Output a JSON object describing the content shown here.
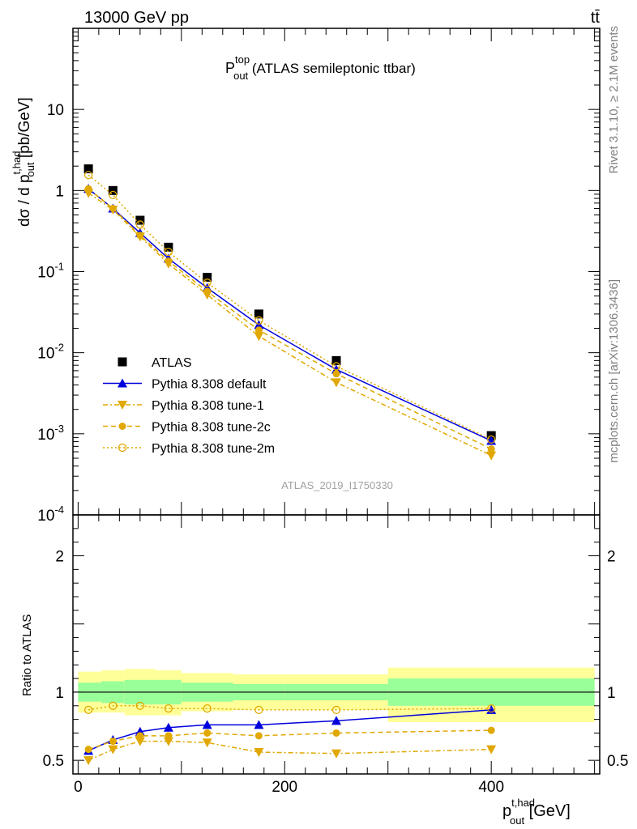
{
  "header": {
    "left": "13000 GeV pp",
    "right": "tt̄"
  },
  "side": {
    "rivet": "Rivet 3.1.10, ≥ 2.1M events",
    "mcplots": "mcplots.cern.ch [arXiv:1306.3436]"
  },
  "watermark": "ATLAS_2019_I1750330",
  "colors": {
    "data": "#000000",
    "default": "#0000dd",
    "tune": "#e0a800",
    "band_inner": "#99ff99",
    "band_outer": "#ffff99"
  },
  "chart_data": [
    {
      "type": "scatter",
      "panel": "main",
      "title": {
        "main": "P",
        "sup": "top",
        "sub": "out",
        "rest": " (ATLAS semileptonic ttbar)"
      },
      "ylabel": "dσ / d p_out^t,had [pb/GeV]",
      "yscale": "log",
      "ylim": [
        0.0001,
        100
      ],
      "xlim": [
        -5,
        505
      ],
      "ytick_labels": [
        "10",
        "1",
        "10^-1",
        "10^-2",
        "10^-3",
        "10^-4"
      ],
      "legend_position": "middle-left",
      "x": [
        10,
        33.75,
        60,
        87.5,
        125,
        175,
        250,
        400
      ],
      "series": [
        {
          "name": "ATLAS",
          "style": "data",
          "values": [
            1.85,
            1.0,
            0.43,
            0.2,
            0.085,
            0.03,
            0.008,
            0.00095
          ]
        },
        {
          "name": "Pythia 8.308 default",
          "style": "default",
          "values": [
            1.05,
            0.6,
            0.3,
            0.145,
            0.063,
            0.022,
            0.0062,
            0.00082
          ]
        },
        {
          "name": "Pythia 8.308 tune-1",
          "style": "tune1",
          "values": [
            0.93,
            0.58,
            0.27,
            0.125,
            0.052,
            0.016,
            0.0043,
            0.00054
          ]
        },
        {
          "name": "Pythia 8.308 tune-2c",
          "style": "tune2c",
          "values": [
            1.05,
            0.6,
            0.28,
            0.135,
            0.057,
            0.019,
            0.0055,
            0.00065
          ]
        },
        {
          "name": "Pythia 8.308 tune-2m",
          "style": "tune2m",
          "values": [
            1.55,
            0.88,
            0.38,
            0.175,
            0.073,
            0.025,
            0.0068,
            0.00085
          ]
        }
      ]
    },
    {
      "type": "line",
      "panel": "ratio",
      "ylabel": "Ratio to ATLAS",
      "xlabel": "p_out^t,had [GeV]",
      "ylim": [
        0.4,
        2.3
      ],
      "xlim": [
        -5,
        505
      ],
      "xtick_labels": [
        "0",
        "200",
        "400"
      ],
      "ytick_labels": [
        "0.5",
        "1",
        "2"
      ],
      "bands": [
        {
          "x0": 0,
          "x1": 22.5,
          "inner": [
            0.93,
            1.07
          ],
          "outer": [
            0.85,
            1.15
          ]
        },
        {
          "x0": 22.5,
          "x1": 45,
          "inner": [
            0.92,
            1.08
          ],
          "outer": [
            0.85,
            1.16
          ]
        },
        {
          "x0": 45,
          "x1": 75,
          "inner": [
            0.91,
            1.09
          ],
          "outer": [
            0.83,
            1.17
          ]
        },
        {
          "x0": 75,
          "x1": 100,
          "inner": [
            0.91,
            1.09
          ],
          "outer": [
            0.83,
            1.16
          ]
        },
        {
          "x0": 100,
          "x1": 150,
          "inner": [
            0.93,
            1.07
          ],
          "outer": [
            0.86,
            1.14
          ]
        },
        {
          "x0": 150,
          "x1": 200,
          "inner": [
            0.94,
            1.06
          ],
          "outer": [
            0.87,
            1.13
          ]
        },
        {
          "x0": 200,
          "x1": 300,
          "inner": [
            0.94,
            1.06
          ],
          "outer": [
            0.87,
            1.13
          ]
        },
        {
          "x0": 300,
          "x1": 500,
          "inner": [
            0.9,
            1.1
          ],
          "outer": [
            0.78,
            1.18
          ]
        }
      ],
      "x": [
        10,
        33.75,
        60,
        87.5,
        125,
        175,
        250,
        400
      ],
      "series": [
        {
          "name": "Pythia 8.308 default",
          "style": "default",
          "values": [
            0.57,
            0.65,
            0.71,
            0.74,
            0.76,
            0.76,
            0.79,
            0.87
          ]
        },
        {
          "name": "Pythia 8.308 tune-1",
          "style": "tune1",
          "values": [
            0.5,
            0.58,
            0.64,
            0.64,
            0.63,
            0.56,
            0.55,
            0.58
          ]
        },
        {
          "name": "Pythia 8.308 tune-2c",
          "style": "tune2c",
          "values": [
            0.58,
            0.64,
            0.68,
            0.68,
            0.7,
            0.68,
            0.7,
            0.72
          ]
        },
        {
          "name": "Pythia 8.308 tune-2m",
          "style": "tune2m",
          "values": [
            0.87,
            0.9,
            0.9,
            0.88,
            0.88,
            0.87,
            0.87,
            0.88
          ]
        }
      ]
    }
  ]
}
